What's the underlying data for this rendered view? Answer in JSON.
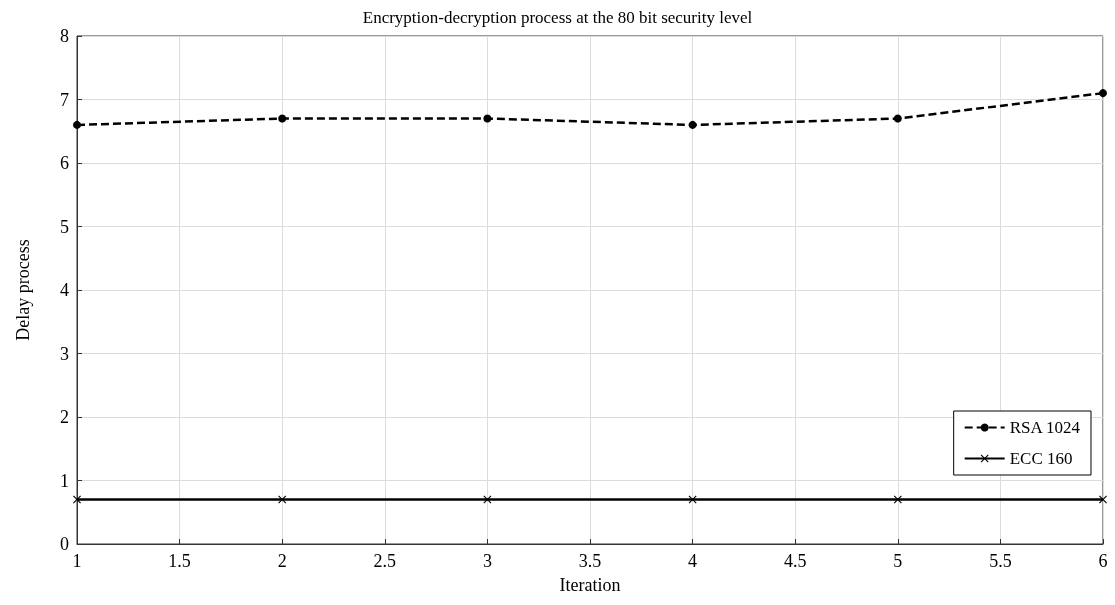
{
  "chart_data": {
    "type": "line",
    "title": "Encryption-decryption process at the 80 bit security level",
    "xlabel": "Iteration",
    "ylabel": "Delay process",
    "x": [
      1,
      2,
      3,
      4,
      5,
      6
    ],
    "series": [
      {
        "name": "RSA 1024",
        "color": "#000000",
        "values": [
          6.6,
          6.7,
          6.7,
          6.6,
          6.7,
          7.1
        ],
        "marker": "circle",
        "line_style": "dashed"
      },
      {
        "name": "ECC 160",
        "color": "#000000",
        "values": [
          0.7,
          0.7,
          0.7,
          0.7,
          0.7,
          0.7
        ],
        "marker": "cross",
        "line_style": "solid"
      }
    ],
    "xlim": [
      1,
      6
    ],
    "xticks": [
      1,
      1.5,
      2,
      2.5,
      3,
      3.5,
      4,
      4.5,
      5,
      5.5,
      6
    ],
    "ylim": [
      0,
      8
    ],
    "yticks": [
      0,
      1,
      2,
      3,
      4,
      5,
      6,
      7,
      8
    ],
    "grid": true,
    "legend": "bottom right"
  }
}
